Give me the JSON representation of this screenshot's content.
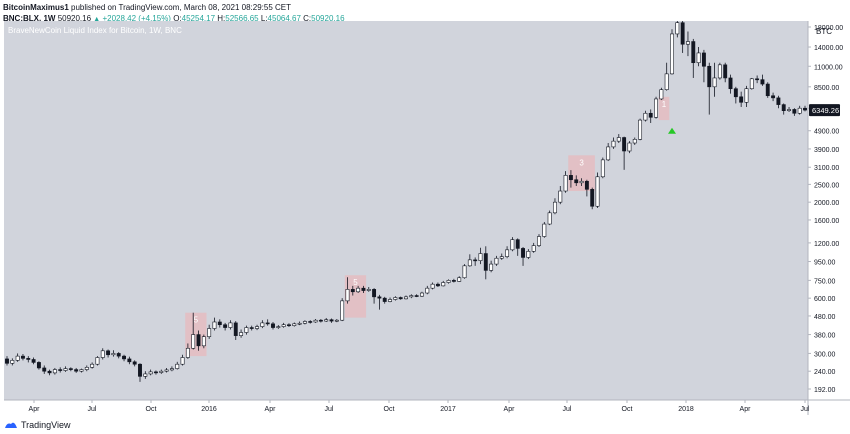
{
  "header": {
    "author": "BitcoinMaximus1",
    "published": "published on TradingView.com, March 08, 2021 08:29:55 CET",
    "symbol": "BNC:BLX, 1W",
    "last": "50920.16",
    "change_arrow": "▲",
    "change": "+2028.42 (+4.15%)",
    "o_label": "O:",
    "o_value": "45254.17",
    "h_label": "H:",
    "h_value": "52566.65",
    "l_label": "L:",
    "l_value": "45064.67",
    "c_label": "C:",
    "c_value": "50920.16"
  },
  "footer": {
    "brand": "TradingView",
    "logo_icon": "tradingview-logo-icon"
  },
  "colors": {
    "plot_bg": "#d1d4dc",
    "bull": "#ffffff",
    "bear": "#131722",
    "highlight": "#e7b9bd",
    "marker": "#26c826",
    "price_badge": "#131722"
  },
  "chart_data": {
    "type": "candlestick",
    "title": "BraveNewCoin Liquid Index for Bitcoin, 1W, BNC",
    "currency": "BTC",
    "y_scale": "log",
    "y_ticks": [
      "192.00",
      "240.00",
      "300.00",
      "380.00",
      "480.00",
      "600.00",
      "750.00",
      "950.00",
      "1200.00",
      "1600.00",
      "2000.00",
      "2500.00",
      "3100.00",
      "3900.00",
      "4900.00",
      "6500.00",
      "8500.00",
      "11000.00",
      "14000.00",
      "18000.00"
    ],
    "x_ticks": [
      "Apr",
      "Jul",
      "Oct",
      "2016",
      "Apr",
      "Jul",
      "Oct",
      "2017",
      "Apr",
      "Jul",
      "Oct",
      "2018",
      "Apr",
      "Jul"
    ],
    "current_price": "6349.26",
    "grid": false,
    "candles": [
      [
        280,
        265,
        290,
        258
      ],
      [
        265,
        275,
        282,
        258
      ],
      [
        275,
        290,
        300,
        270
      ],
      [
        290,
        282,
        298,
        275
      ],
      [
        282,
        278,
        290,
        268
      ],
      [
        278,
        268,
        285,
        262
      ],
      [
        268,
        250,
        272,
        245
      ],
      [
        250,
        240,
        258,
        232
      ],
      [
        240,
        235,
        245,
        228
      ],
      [
        235,
        245,
        250,
        230
      ],
      [
        245,
        242,
        252,
        236
      ],
      [
        242,
        248,
        255,
        238
      ],
      [
        248,
        245,
        252,
        240
      ],
      [
        245,
        240,
        250,
        235
      ],
      [
        240,
        245,
        248,
        236
      ],
      [
        245,
        252,
        258,
        240
      ],
      [
        252,
        262,
        268,
        248
      ],
      [
        262,
        285,
        290,
        258
      ],
      [
        285,
        310,
        320,
        278
      ],
      [
        310,
        295,
        315,
        285
      ],
      [
        295,
        300,
        312,
        288
      ],
      [
        300,
        290,
        305,
        282
      ],
      [
        290,
        280,
        295,
        272
      ],
      [
        280,
        270,
        288,
        262
      ],
      [
        270,
        262,
        275,
        255
      ],
      [
        262,
        225,
        265,
        210
      ],
      [
        225,
        232,
        240,
        218
      ],
      [
        232,
        238,
        245,
        228
      ],
      [
        238,
        236,
        242,
        230
      ],
      [
        236,
        240,
        245,
        232
      ],
      [
        240,
        244,
        250,
        236
      ],
      [
        244,
        248,
        255,
        240
      ],
      [
        248,
        262,
        270,
        245
      ],
      [
        262,
        285,
        295,
        258
      ],
      [
        285,
        320,
        340,
        280
      ],
      [
        320,
        380,
        500,
        315
      ],
      [
        380,
        330,
        400,
        310
      ],
      [
        330,
        370,
        380,
        320
      ],
      [
        370,
        410,
        430,
        360
      ],
      [
        410,
        445,
        470,
        400
      ],
      [
        445,
        430,
        460,
        415
      ],
      [
        430,
        415,
        440,
        400
      ],
      [
        415,
        440,
        455,
        405
      ],
      [
        440,
        375,
        450,
        355
      ],
      [
        375,
        390,
        405,
        365
      ],
      [
        390,
        415,
        425,
        380
      ],
      [
        415,
        410,
        425,
        400
      ],
      [
        410,
        420,
        430,
        402
      ],
      [
        420,
        440,
        455,
        412
      ],
      [
        440,
        435,
        460,
        425
      ],
      [
        435,
        415,
        445,
        405
      ],
      [
        415,
        420,
        428,
        408
      ],
      [
        420,
        430,
        440,
        414
      ],
      [
        430,
        425,
        438,
        418
      ],
      [
        425,
        435,
        442,
        420
      ],
      [
        435,
        438,
        448,
        428
      ],
      [
        438,
        448,
        455,
        432
      ],
      [
        448,
        445,
        455,
        436
      ],
      [
        445,
        455,
        462,
        440
      ],
      [
        455,
        450,
        462,
        442
      ],
      [
        450,
        458,
        468,
        445
      ],
      [
        458,
        450,
        465,
        440
      ],
      [
        450,
        455,
        462,
        444
      ],
      [
        455,
        580,
        600,
        450
      ],
      [
        580,
        670,
        780,
        560
      ],
      [
        670,
        650,
        700,
        620
      ],
      [
        650,
        680,
        700,
        640
      ],
      [
        680,
        660,
        700,
        640
      ],
      [
        660,
        670,
        690,
        650
      ],
      [
        670,
        610,
        680,
        560
      ],
      [
        610,
        600,
        625,
        520
      ],
      [
        600,
        575,
        610,
        560
      ],
      [
        575,
        590,
        605,
        570
      ],
      [
        590,
        605,
        615,
        582
      ],
      [
        605,
        595,
        612,
        588
      ],
      [
        595,
        610,
        620,
        590
      ],
      [
        610,
        620,
        630,
        600
      ],
      [
        620,
        615,
        630,
        608
      ],
      [
        615,
        640,
        650,
        610
      ],
      [
        640,
        680,
        700,
        630
      ],
      [
        680,
        715,
        730,
        670
      ],
      [
        715,
        700,
        730,
        690
      ],
      [
        700,
        730,
        745,
        695
      ],
      [
        730,
        750,
        760,
        720
      ],
      [
        750,
        740,
        765,
        730
      ],
      [
        740,
        775,
        790,
        735
      ],
      [
        775,
        900,
        920,
        765
      ],
      [
        900,
        970,
        1040,
        890
      ],
      [
        970,
        960,
        1000,
        900
      ],
      [
        960,
        1050,
        1130,
        920
      ],
      [
        1050,
        850,
        1150,
        760
      ],
      [
        850,
        920,
        960,
        830
      ],
      [
        920,
        990,
        1020,
        900
      ],
      [
        990,
        1010,
        1050,
        970
      ],
      [
        1010,
        1100,
        1150,
        990
      ],
      [
        1100,
        1250,
        1290,
        1080
      ],
      [
        1250,
        1120,
        1270,
        1020
      ],
      [
        1120,
        1000,
        1140,
        900
      ],
      [
        1000,
        1080,
        1110,
        980
      ],
      [
        1080,
        1160,
        1200,
        1060
      ],
      [
        1160,
        1300,
        1340,
        1140
      ],
      [
        1300,
        1520,
        1560,
        1280
      ],
      [
        1520,
        1750,
        1800,
        1500
      ],
      [
        1750,
        2000,
        2100,
        1720
      ],
      [
        2000,
        2300,
        2450,
        1950
      ],
      [
        2300,
        2800,
        2950,
        2250
      ],
      [
        2800,
        2650,
        2990,
        2400
      ],
      [
        2650,
        2550,
        2800,
        2450
      ],
      [
        2550,
        2600,
        2700,
        2450
      ],
      [
        2600,
        2350,
        2650,
        2150
      ],
      [
        2350,
        1900,
        2400,
        1830
      ],
      [
        1900,
        2750,
        2900,
        1860
      ],
      [
        2750,
        3400,
        3500,
        2700
      ],
      [
        3400,
        4000,
        4200,
        3350
      ],
      [
        4000,
        4300,
        4500,
        3900
      ],
      [
        4300,
        4500,
        4700,
        4200
      ],
      [
        4500,
        3800,
        4550,
        3000
      ],
      [
        3800,
        4200,
        4300,
        3700
      ],
      [
        4200,
        4400,
        4500,
        4100
      ],
      [
        4400,
        5600,
        5700,
        4350
      ],
      [
        5600,
        6100,
        6300,
        5500
      ],
      [
        6100,
        5800,
        6400,
        5400
      ],
      [
        5800,
        7300,
        7500,
        5700
      ],
      [
        7300,
        8200,
        8400,
        7200
      ],
      [
        8200,
        10000,
        11500,
        8100
      ],
      [
        10000,
        16500,
        17500,
        9900
      ],
      [
        16500,
        19000,
        19700,
        15800
      ],
      [
        19000,
        14500,
        19500,
        13000
      ],
      [
        14500,
        15000,
        17000,
        12500
      ],
      [
        15000,
        11500,
        15500,
        9500
      ],
      [
        11500,
        13000,
        14000,
        11000
      ],
      [
        13000,
        11000,
        13500,
        9000
      ],
      [
        11000,
        8500,
        11500,
        6000
      ],
      [
        8500,
        9500,
        11500,
        7500
      ],
      [
        9500,
        11200,
        11500,
        9300
      ],
      [
        11200,
        9500,
        11500,
        9000
      ],
      [
        9500,
        8300,
        9900,
        7800
      ],
      [
        8300,
        7500,
        8500,
        6900
      ],
      [
        7500,
        7000,
        8000,
        6600
      ],
      [
        7000,
        8300,
        8600,
        6600
      ],
      [
        8300,
        9400,
        9500,
        8200
      ],
      [
        9400,
        9300,
        9800,
        8900
      ],
      [
        9300,
        8800,
        9900,
        8600
      ],
      [
        8800,
        7600,
        9000,
        7400
      ],
      [
        7600,
        7400,
        7900,
        7100
      ],
      [
        7400,
        6800,
        7600,
        6500
      ],
      [
        6800,
        6300,
        6900,
        6000
      ],
      [
        6300,
        6400,
        6600,
        6200
      ],
      [
        6400,
        6100,
        6500,
        5900
      ],
      [
        6100,
        6500,
        6700,
        6000
      ],
      [
        6500,
        6350,
        6700,
        6250
      ]
    ],
    "highlight_boxes": [
      {
        "label": "5",
        "from": 34,
        "to": 37,
        "top": 500,
        "bottom": 290
      },
      {
        "label": "5",
        "from": 64,
        "to": 67,
        "top": 800,
        "bottom": 470
      },
      {
        "label": "3",
        "from": 106,
        "to": 110,
        "top": 3600,
        "bottom": 2300
      },
      {
        "label": "1",
        "from": 123,
        "to": 124,
        "top": 7500,
        "bottom": 5600
      }
    ],
    "signal_marker": {
      "index": 125,
      "price": 4900
    }
  }
}
